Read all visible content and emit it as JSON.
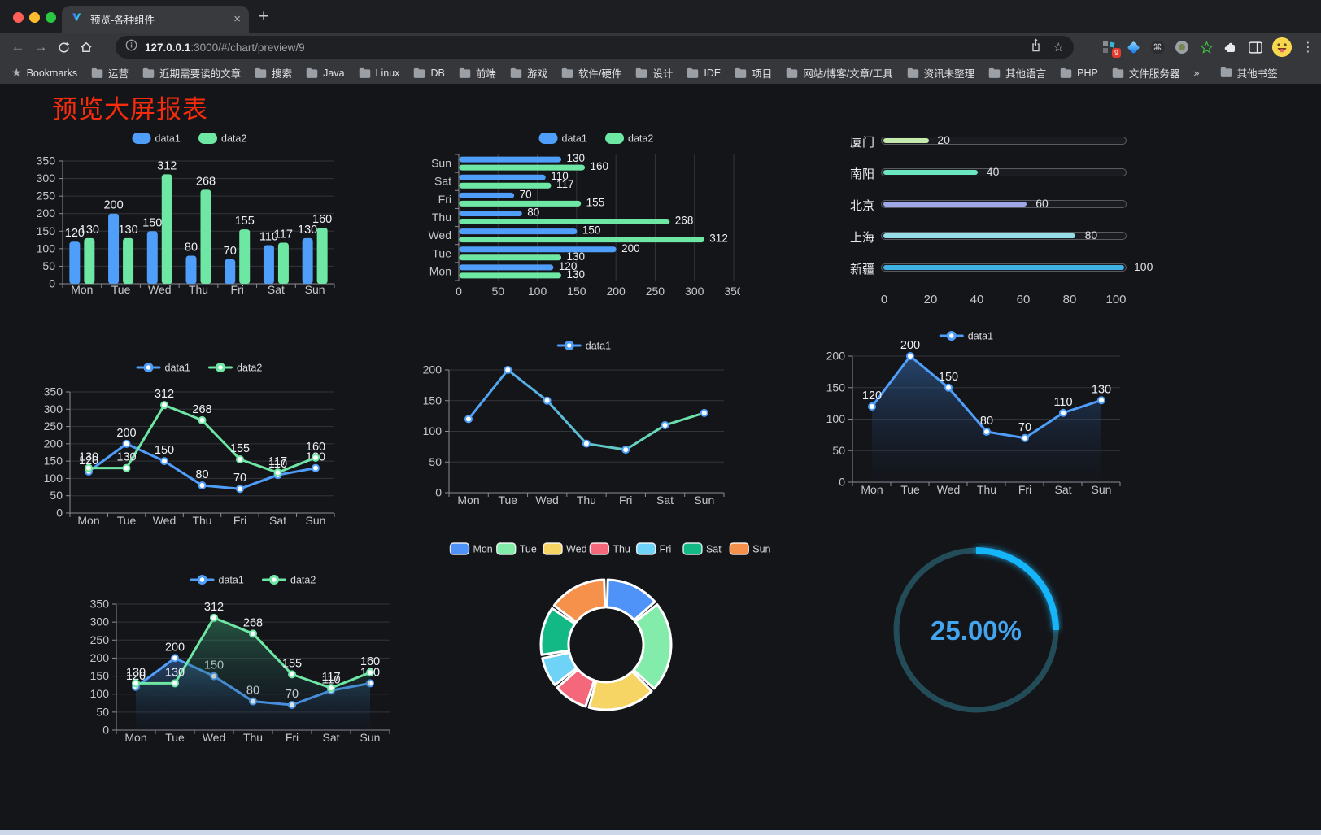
{
  "browser": {
    "traffic_lights": [
      "#ff5f57",
      "#febc2e",
      "#2ac840"
    ],
    "tab_title": "预览-各种组件",
    "url_host": "127.0.0.1",
    "url_rest": ":3000/#/chart/preview/9",
    "extension_badge": "9",
    "bookmarks_label": "Bookmarks",
    "bookmark_folders": [
      "运营",
      "近期需要读的文章",
      "搜索",
      "Java",
      "Linux",
      "DB",
      "前端",
      "游戏",
      "软件/硬件",
      "设计",
      "IDE",
      "项目",
      "网站/博客/文章/工具",
      "资讯未整理",
      "其他语言",
      "PHP",
      "文件服务器"
    ],
    "bookmarks_overflow": "»",
    "other_bookmarks": "其他书签"
  },
  "icons": {
    "back": "←",
    "forward": "→",
    "menu": "⋮",
    "close": "×",
    "new_tab": "+",
    "star": "☆",
    "command": "⌘",
    "bookmarks_star": "★"
  },
  "page": {
    "title": "预览大屏报表",
    "title_color": "#f72c0c",
    "background": "#141519"
  },
  "chart_data": [
    {
      "id": "vbar",
      "type": "bar",
      "categories": [
        "Mon",
        "Tue",
        "Wed",
        "Thu",
        "Fri",
        "Sat",
        "Sun"
      ],
      "series": [
        {
          "name": "data1",
          "color": "#4f9ef9",
          "values": [
            120,
            200,
            150,
            80,
            70,
            110,
            130
          ]
        },
        {
          "name": "data2",
          "color": "#6ee7a5",
          "values": [
            130,
            130,
            312,
            268,
            155,
            117,
            160
          ]
        }
      ],
      "ylim": [
        0,
        350
      ],
      "ytick": 50,
      "legend_position": "top",
      "grid": true,
      "point_labels": true
    },
    {
      "id": "hbar",
      "type": "bar-horizontal",
      "categories": [
        "Mon",
        "Tue",
        "Wed",
        "Thu",
        "Fri",
        "Sat",
        "Sun"
      ],
      "display_order": "Sun-at-top",
      "series": [
        {
          "name": "data1",
          "color": "#4f9ef9",
          "values": [
            120,
            200,
            150,
            80,
            70,
            110,
            130
          ]
        },
        {
          "name": "data2",
          "color": "#6ee7a5",
          "values": [
            130,
            130,
            312,
            268,
            155,
            117,
            160
          ]
        }
      ],
      "xlim": [
        0,
        350
      ],
      "xtick": 50,
      "legend_position": "top",
      "grid": true,
      "point_labels": true
    },
    {
      "id": "caps",
      "type": "progress-bars",
      "xlim": [
        0,
        100
      ],
      "xticks": [
        0,
        20,
        40,
        60,
        80,
        100
      ],
      "rows": [
        {
          "label": "厦门",
          "value": 20,
          "color": "#c4ebad"
        },
        {
          "label": "南阳",
          "value": 40,
          "color": "#6be6c1"
        },
        {
          "label": "北京",
          "value": 60,
          "color": "#a0a7e6"
        },
        {
          "label": "上海",
          "value": 80,
          "color": "#96dee8"
        },
        {
          "label": "新疆",
          "value": 100,
          "color": "#3fb1e3"
        }
      ]
    },
    {
      "id": "line2",
      "type": "line",
      "categories": [
        "Mon",
        "Tue",
        "Wed",
        "Thu",
        "Fri",
        "Sat",
        "Sun"
      ],
      "series": [
        {
          "name": "data1",
          "color": "#4f9ef9",
          "values": [
            120,
            200,
            150,
            80,
            70,
            110,
            130
          ]
        },
        {
          "name": "data2",
          "color": "#6ee7a5",
          "values": [
            130,
            130,
            312,
            268,
            155,
            117,
            160
          ]
        }
      ],
      "ylim": [
        0,
        350
      ],
      "ytick": 50,
      "point_labels": true,
      "markers": true
    },
    {
      "id": "line1",
      "type": "line",
      "categories": [
        "Mon",
        "Tue",
        "Wed",
        "Thu",
        "Fri",
        "Sat",
        "Sun"
      ],
      "series": [
        {
          "name": "data1",
          "color": "#4f9ef9",
          "gradient": [
            "#4f9ef9",
            "#6ee7a5"
          ],
          "values": [
            120,
            200,
            150,
            80,
            70,
            110,
            130
          ]
        }
      ],
      "ylim": [
        0,
        200
      ],
      "ytick": 50,
      "point_labels": false,
      "markers": true
    },
    {
      "id": "area1",
      "type": "area",
      "categories": [
        "Mon",
        "Tue",
        "Wed",
        "Thu",
        "Fri",
        "Sat",
        "Sun"
      ],
      "series": [
        {
          "name": "data1",
          "color": "#4f9ef9",
          "area": true,
          "values": [
            120,
            200,
            150,
            80,
            70,
            110,
            130
          ]
        }
      ],
      "ylim": [
        0,
        200
      ],
      "ytick": 50,
      "point_labels": true,
      "markers": true
    },
    {
      "id": "area2",
      "type": "area",
      "categories": [
        "Mon",
        "Tue",
        "Wed",
        "Thu",
        "Fri",
        "Sat",
        "Sun"
      ],
      "series": [
        {
          "name": "data1",
          "color": "#4f9ef9",
          "area": true,
          "values": [
            120,
            200,
            150,
            80,
            70,
            110,
            130
          ]
        },
        {
          "name": "data2",
          "color": "#6ee7a5",
          "area": true,
          "values": [
            130,
            130,
            312,
            268,
            155,
            117,
            160
          ]
        }
      ],
      "ylim": [
        0,
        350
      ],
      "ytick": 50,
      "point_labels": true,
      "markers": true
    },
    {
      "id": "pie",
      "type": "pie",
      "labels": [
        "Mon",
        "Tue",
        "Wed",
        "Thu",
        "Fri",
        "Sat",
        "Sun"
      ],
      "values": [
        120,
        200,
        150,
        80,
        70,
        110,
        130
      ],
      "colors": [
        "#4f92f8",
        "#84ecaa",
        "#f6d565",
        "#f5687c",
        "#6ed3f6",
        "#13b985",
        "#f6914b"
      ],
      "inner_radius_ratio": 0.58,
      "legend_position": "top"
    },
    {
      "id": "gauge",
      "type": "gauge",
      "percent": 25,
      "value_label": "25.00%",
      "color": "#18b4f8",
      "track_color": "#234c59",
      "text_color": "#42a5ee"
    }
  ]
}
